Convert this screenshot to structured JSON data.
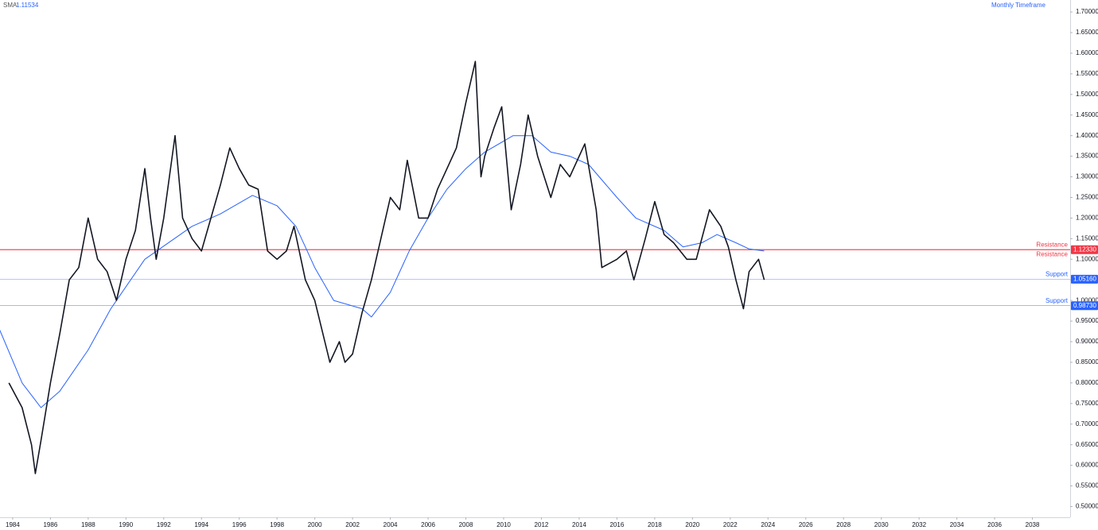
{
  "chart_data": {
    "type": "line",
    "title": "Monthly Timeframe",
    "color": "#131722",
    "x": [
      1983.8,
      1984.5,
      1985.0,
      1985.2,
      1985.5,
      1986.0,
      1986.5,
      1987.0,
      1987.5,
      1988.0,
      1988.5,
      1989.0,
      1989.5,
      1990.0,
      1990.5,
      1991.0,
      1991.3,
      1991.6,
      1992.0,
      1992.6,
      1993.0,
      1993.5,
      1994.0,
      1994.5,
      1995.0,
      1995.5,
      1996.0,
      1996.5,
      1997.0,
      1997.5,
      1998.0,
      1998.5,
      1998.9,
      1999.5,
      2000.0,
      2000.8,
      2001.3,
      2001.6,
      2002.0,
      2002.5,
      2003.0,
      2003.5,
      2004.0,
      2004.5,
      2004.9,
      2005.5,
      2006.0,
      2006.5,
      2007.0,
      2007.5,
      2008.0,
      2008.5,
      2008.8,
      2009.0,
      2009.5,
      2009.9,
      2010.4,
      2010.9,
      2011.3,
      2011.8,
      2012.5,
      2013.0,
      2013.5,
      2014.3,
      2014.9,
      2015.2,
      2016.0,
      2016.5,
      2016.9,
      2017.5,
      2018.0,
      2018.5,
      2019.0,
      2019.7,
      2020.2,
      2020.9,
      2021.5,
      2021.9,
      2022.3,
      2022.7,
      2023.0,
      2023.5,
      2023.8
    ],
    "values": [
      0.8,
      0.74,
      0.65,
      0.58,
      0.66,
      0.8,
      0.92,
      1.05,
      1.08,
      1.2,
      1.1,
      1.07,
      1.0,
      1.1,
      1.17,
      1.32,
      1.2,
      1.1,
      1.2,
      1.4,
      1.2,
      1.15,
      1.12,
      1.2,
      1.28,
      1.37,
      1.32,
      1.28,
      1.27,
      1.12,
      1.1,
      1.12,
      1.18,
      1.05,
      1.0,
      0.85,
      0.9,
      0.85,
      0.87,
      0.97,
      1.05,
      1.15,
      1.25,
      1.22,
      1.34,
      1.2,
      1.2,
      1.27,
      1.32,
      1.37,
      1.48,
      1.58,
      1.3,
      1.35,
      1.42,
      1.47,
      1.22,
      1.33,
      1.45,
      1.35,
      1.25,
      1.33,
      1.3,
      1.38,
      1.22,
      1.08,
      1.1,
      1.12,
      1.05,
      1.15,
      1.24,
      1.16,
      1.14,
      1.1,
      1.1,
      1.22,
      1.18,
      1.13,
      1.05,
      0.98,
      1.07,
      1.1,
      1.05
    ],
    "sma": {
      "name": "SMA",
      "value": 1.11534,
      "color": "#2962ff",
      "x": [
        1983.3,
        1984.5,
        1985.5,
        1986.5,
        1988.0,
        1989.2,
        1991.0,
        1993.5,
        1995.0,
        1996.7,
        1998.0,
        1999.0,
        2000.0,
        2001.0,
        2002.5,
        2003.0,
        2004.0,
        2005.0,
        2006.0,
        2007.0,
        2008.0,
        2009.0,
        2010.5,
        2011.5,
        2012.5,
        2013.5,
        2014.5,
        2016.0,
        2017.0,
        2018.5,
        2019.5,
        2020.5,
        2021.3,
        2022.3,
        2023.0,
        2023.8
      ],
      "values": [
        0.93,
        0.8,
        0.74,
        0.78,
        0.88,
        0.98,
        1.1,
        1.18,
        1.21,
        1.255,
        1.23,
        1.18,
        1.08,
        1.0,
        0.98,
        0.96,
        1.02,
        1.12,
        1.2,
        1.27,
        1.32,
        1.36,
        1.4,
        1.4,
        1.36,
        1.35,
        1.33,
        1.25,
        1.2,
        1.17,
        1.13,
        1.14,
        1.16,
        1.14,
        1.125,
        1.12
      ]
    },
    "levels": [
      {
        "value": 1.1233,
        "label": "1.12330",
        "color": "#f23645",
        "notes": [
          "Resistance",
          "Resistance"
        ]
      },
      {
        "value": 1.0516,
        "label": "1.05160",
        "color": "#2962ff",
        "notes": [
          "Support"
        ]
      },
      {
        "value": 0.9873,
        "label": "0.98730",
        "color": "#2962ff",
        "notes": [
          "Support"
        ]
      }
    ],
    "xlim": [
      1983.33,
      2040
    ],
    "xticks": [
      1984,
      1986,
      1988,
      1990,
      1992,
      1994,
      1996,
      1998,
      2000,
      2002,
      2004,
      2006,
      2008,
      2010,
      2012,
      2014,
      2016,
      2018,
      2020,
      2022,
      2024,
      2026,
      2028,
      2030,
      2032,
      2034,
      2036,
      2038
    ],
    "ylim": [
      0.4739,
      1.7291
    ],
    "yticks": [
      {
        "value": 0.5,
        "label": "0.50000"
      },
      {
        "value": 0.55,
        "label": "0.55000"
      },
      {
        "value": 0.6,
        "label": "0.60000"
      },
      {
        "value": 0.65,
        "label": "0.65000"
      },
      {
        "value": 0.7,
        "label": "0.70000"
      },
      {
        "value": 0.75,
        "label": "0.75000"
      },
      {
        "value": 0.8,
        "label": "0.80000"
      },
      {
        "value": 0.85,
        "label": "0.85000"
      },
      {
        "value": 0.9,
        "label": "0.90000"
      },
      {
        "value": 0.95,
        "label": "0.95000"
      },
      {
        "value": 1.0,
        "label": "1.00000"
      },
      {
        "value": 1.05,
        "label": "1.05000"
      },
      {
        "value": 1.1,
        "label": "1.10000"
      },
      {
        "value": 1.15,
        "label": "1.15000"
      },
      {
        "value": 1.2,
        "label": "1.20000"
      },
      {
        "value": 1.25,
        "label": "1.25000"
      },
      {
        "value": 1.3,
        "label": "1.30000"
      },
      {
        "value": 1.35,
        "label": "1.35000"
      },
      {
        "value": 1.4,
        "label": "1.40000"
      },
      {
        "value": 1.45,
        "label": "1.45000"
      },
      {
        "value": 1.5,
        "label": "1.50000"
      },
      {
        "value": 1.55,
        "label": "1.55000"
      },
      {
        "value": 1.6,
        "label": "1.60000"
      },
      {
        "value": 1.65,
        "label": "1.65000"
      },
      {
        "value": 1.7,
        "label": "1.70000"
      }
    ],
    "grid": false
  }
}
